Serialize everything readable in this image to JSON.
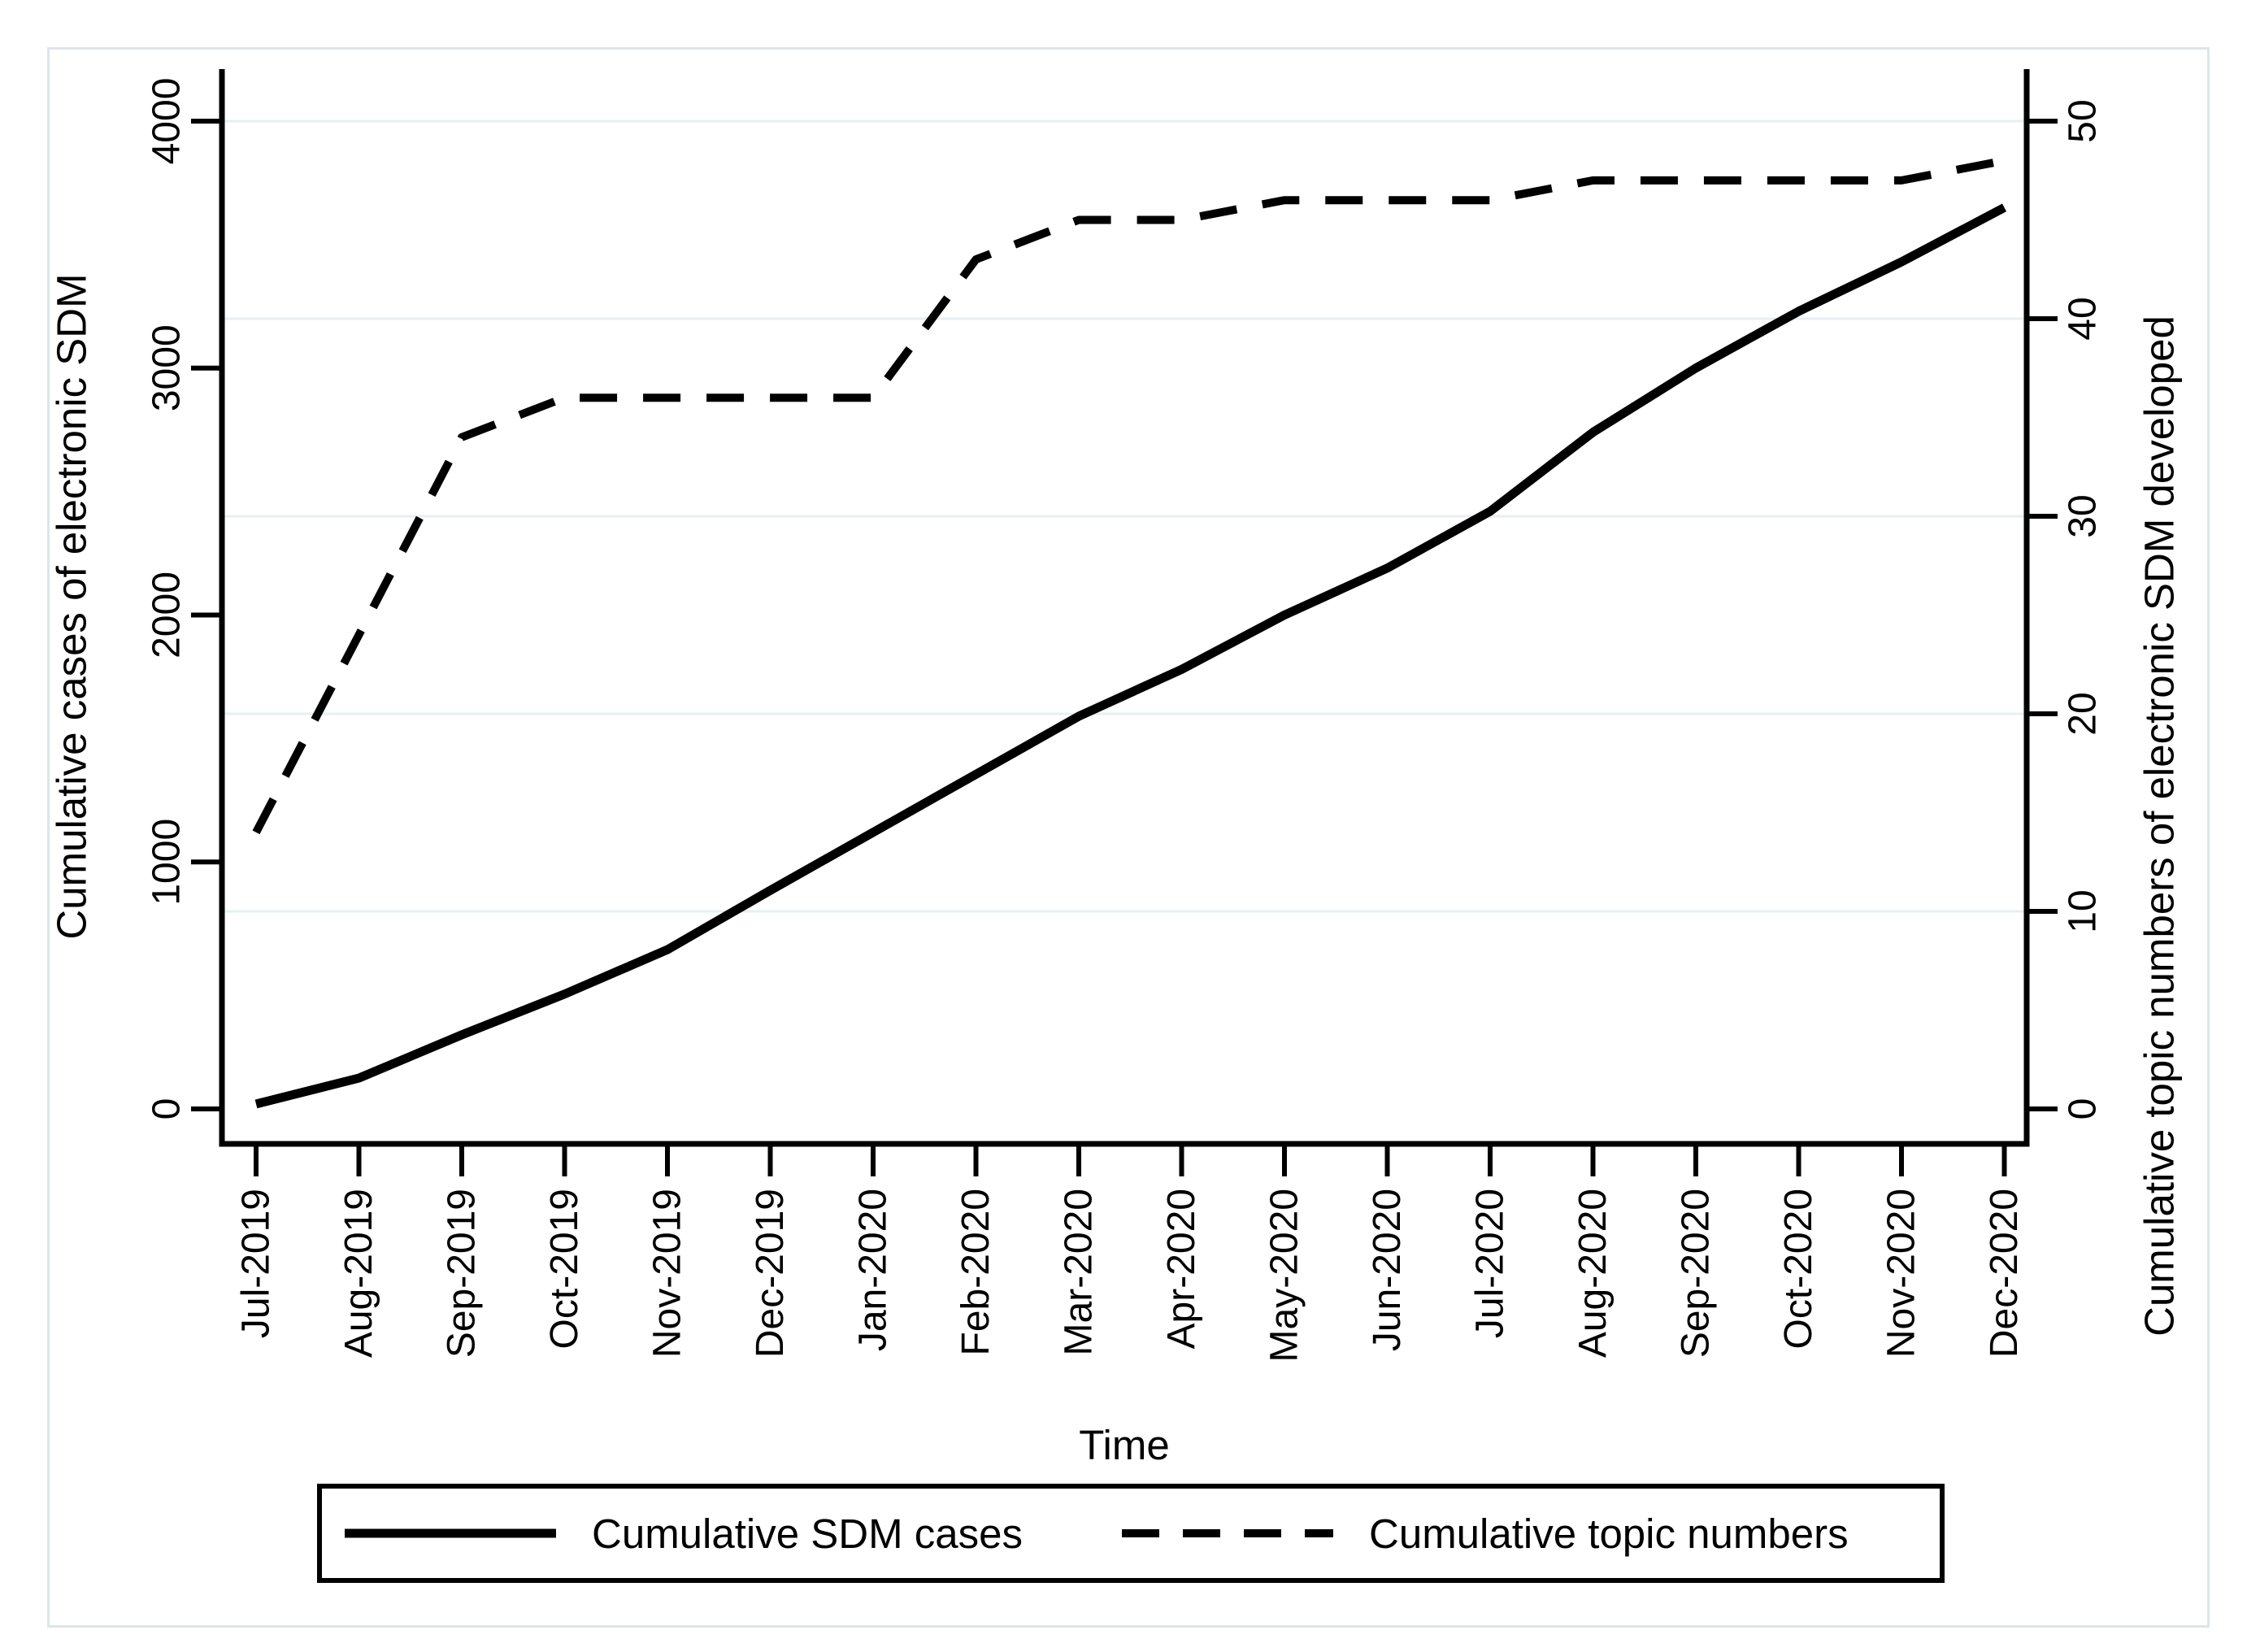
{
  "figure": {
    "x_axis_title": "Time",
    "left_axis_title": "Cumulative cases of electronic SDM",
    "right_axis_title": "Cumulative topic numbers of electronic SDM developed"
  },
  "legend": {
    "items": [
      {
        "label": "Cumulative SDM cases",
        "style": "solid"
      },
      {
        "label": "Cumulative topic numbers",
        "style": "dashed"
      }
    ]
  },
  "colors": {
    "line": "#000000",
    "gridline": "#e7eff2",
    "figure_border": "#dce6e9",
    "background": "#ffffff",
    "text": "#000000"
  },
  "chart_data": {
    "type": "line",
    "title": "",
    "categories": [
      "Jul-2019",
      "Aug-2019",
      "Sep-2019",
      "Oct-2019",
      "Nov-2019",
      "Dec-2019",
      "Jan-2020",
      "Feb-2020",
      "Mar-2020",
      "Apr-2020",
      "May-2020",
      "Jun-2020",
      "Jul-2020",
      "Aug-2020",
      "Sep-2020",
      "Oct-2020",
      "Nov-2020",
      "Dec-2020"
    ],
    "series": [
      {
        "name": "Cumulative SDM cases",
        "axis": "left",
        "style": "solid",
        "values": [
          20,
          125,
          300,
          465,
          645,
          885,
          1120,
          1355,
          1590,
          1780,
          2000,
          2190,
          2420,
          2740,
          3000,
          3230,
          3430,
          3650
        ]
      },
      {
        "name": "Cumulative topic numbers",
        "axis": "right",
        "style": "dashed",
        "values": [
          14,
          24,
          34,
          36,
          36,
          36,
          36,
          43,
          45,
          45,
          46,
          46,
          46,
          47,
          47,
          47,
          47,
          48
        ]
      }
    ],
    "x_axis": {
      "label": "Time",
      "tick_angle": "vertical"
    },
    "left_axis": {
      "label": "Cumulative cases of electronic SDM",
      "ticks": [
        0,
        1000,
        2000,
        3000,
        4000
      ],
      "range": [
        0,
        4000
      ]
    },
    "right_axis": {
      "label": "Cumulative topic numbers of electronic SDM developed",
      "ticks": [
        0,
        10,
        20,
        30,
        40,
        50
      ],
      "range": [
        0,
        50
      ]
    },
    "grid": true,
    "legend_position": "bottom"
  }
}
